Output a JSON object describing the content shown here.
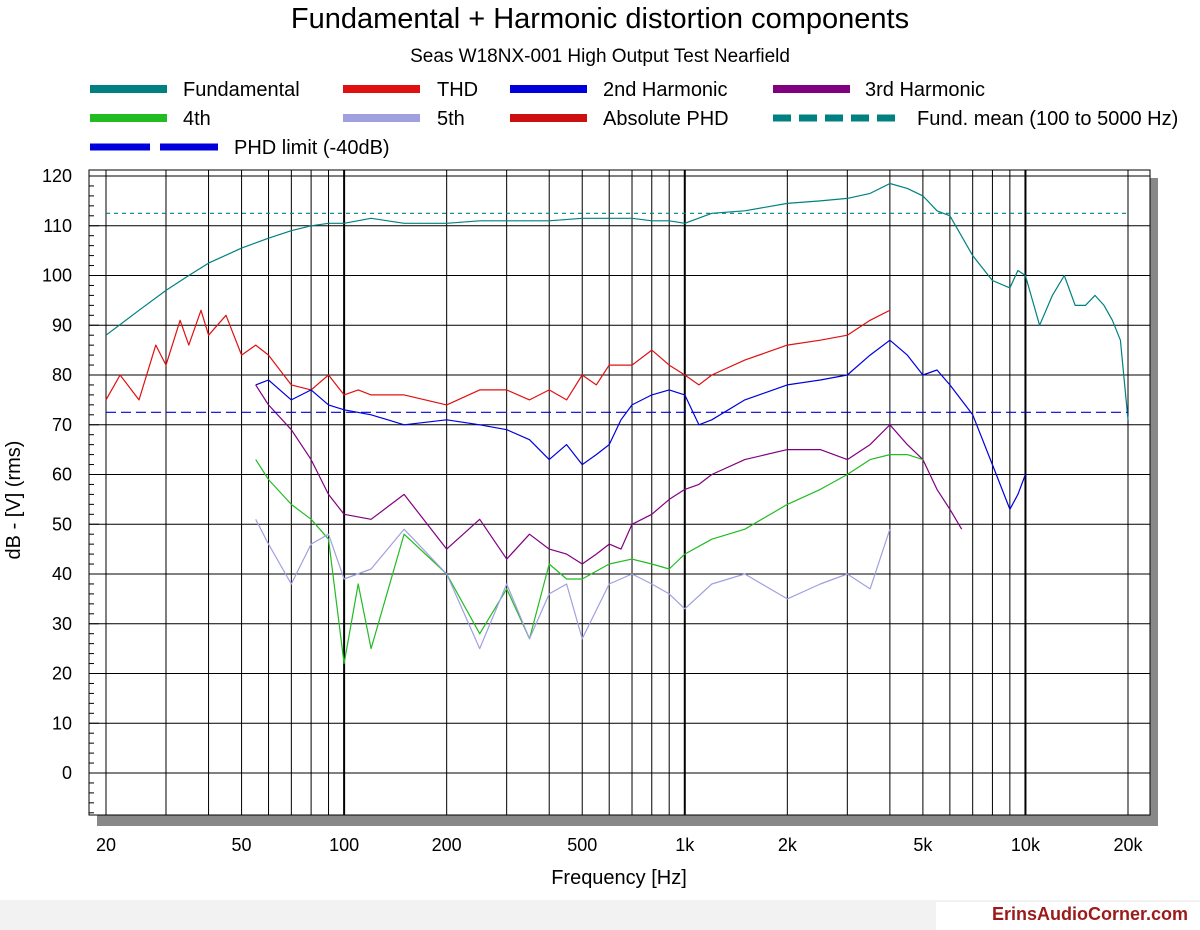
{
  "credit": "ErinsAudioCorner.com",
  "chart_data": {
    "type": "line",
    "title": "Fundamental + Harmonic distortion components",
    "subtitle": "Seas W18NX-001 High Output Test Nearfield",
    "xlabel": "Frequency [Hz]",
    "ylabel": "dB - [V]  (rms)",
    "xscale": "log",
    "xlim": [
      18,
      22000
    ],
    "ylim": [
      -8,
      122
    ],
    "grid": true,
    "legend": "top",
    "x_ticks": [
      {
        "v": 20,
        "label": "20"
      },
      {
        "v": 50,
        "label": "50"
      },
      {
        "v": 100,
        "label": "100"
      },
      {
        "v": 200,
        "label": "200"
      },
      {
        "v": 500,
        "label": "500"
      },
      {
        "v": 1000,
        "label": "1k"
      },
      {
        "v": 2000,
        "label": "2k"
      },
      {
        "v": 5000,
        "label": "5k"
      },
      {
        "v": 10000,
        "label": "10k"
      },
      {
        "v": 20000,
        "label": "20k"
      }
    ],
    "y_ticks": [
      0,
      10,
      20,
      30,
      40,
      50,
      60,
      70,
      80,
      90,
      100,
      110,
      120
    ],
    "series": [
      {
        "name": "Fundamental",
        "color": "#008080",
        "style": "solid",
        "x": [
          20,
          25,
          30,
          35,
          40,
          50,
          60,
          70,
          80,
          90,
          100,
          120,
          150,
          200,
          250,
          300,
          400,
          500,
          600,
          700,
          800,
          900,
          1000,
          1200,
          1500,
          2000,
          2500,
          3000,
          3500,
          4000,
          4500,
          5000,
          5500,
          6000,
          7000,
          8000,
          9000,
          9500,
          10000,
          11000,
          12000,
          13000,
          14000,
          15000,
          16000,
          17000,
          18000,
          19000,
          20000
        ],
        "y": [
          88,
          93,
          97,
          100,
          102.5,
          105.5,
          107.5,
          109,
          110,
          110.5,
          110.5,
          111.5,
          110.5,
          110.5,
          111,
          111,
          111,
          111.5,
          111.5,
          111.5,
          111,
          111,
          110.5,
          112.5,
          113,
          114.5,
          115,
          115.5,
          116.5,
          118.5,
          117.5,
          116,
          113,
          112,
          104,
          99,
          97.5,
          101,
          100,
          90,
          96,
          100,
          94,
          94,
          96,
          94,
          91,
          87,
          71
        ]
      },
      {
        "name": "THD",
        "color": "#e01010",
        "style": "solid",
        "x": [
          20,
          22,
          25,
          28,
          30,
          33,
          35,
          38,
          40,
          45,
          50,
          55,
          60,
          70,
          80,
          90,
          100,
          110,
          120,
          150,
          200,
          250,
          300,
          350,
          400,
          450,
          500,
          550,
          600,
          700,
          800,
          900,
          1000,
          1100,
          1200,
          1500,
          2000,
          2500,
          3000,
          3500,
          4000
        ],
        "y": [
          75,
          80,
          75,
          86,
          82,
          91,
          86,
          93,
          88,
          92,
          84,
          86,
          84,
          78,
          77,
          80,
          76,
          77,
          76,
          76,
          74,
          77,
          77,
          75,
          77,
          75,
          80,
          78,
          82,
          82,
          85,
          82,
          80,
          78,
          80,
          83,
          86,
          87,
          88,
          91,
          93
        ]
      },
      {
        "name": "2nd Harmonic",
        "color": "#0000dd",
        "style": "solid",
        "x": [
          55,
          60,
          70,
          80,
          90,
          100,
          120,
          150,
          200,
          250,
          300,
          350,
          400,
          450,
          500,
          550,
          600,
          650,
          700,
          800,
          900,
          1000,
          1100,
          1200,
          1500,
          2000,
          2500,
          3000,
          3500,
          4000,
          4500,
          5000,
          5500,
          6000,
          7000,
          8000,
          9000,
          9500,
          10000
        ],
        "y": [
          78,
          79,
          75,
          77,
          74,
          73,
          72,
          70,
          71,
          70,
          69,
          67,
          63,
          66,
          62,
          64,
          66,
          71,
          74,
          76,
          77,
          76,
          70,
          71,
          75,
          78,
          79,
          80,
          84,
          87,
          84,
          80,
          81,
          78,
          72,
          62,
          53,
          56,
          60
        ]
      },
      {
        "name": "3rd Harmonic",
        "color": "#800080",
        "style": "solid",
        "x": [
          55,
          60,
          70,
          80,
          90,
          100,
          120,
          150,
          200,
          250,
          300,
          350,
          400,
          450,
          500,
          550,
          600,
          650,
          700,
          800,
          900,
          1000,
          1100,
          1200,
          1500,
          2000,
          2500,
          3000,
          3500,
          4000,
          4500,
          5000,
          5500,
          6000,
          6500
        ],
        "y": [
          78,
          74,
          69,
          63,
          56,
          52,
          51,
          56,
          45,
          51,
          43,
          48,
          45,
          44,
          42,
          44,
          46,
          45,
          50,
          52,
          55,
          57,
          58,
          60,
          63,
          65,
          65,
          63,
          66,
          70,
          66,
          63,
          57,
          53,
          49
        ]
      },
      {
        "name": "4th",
        "color": "#22bb22",
        "style": "solid",
        "x": [
          55,
          60,
          70,
          80,
          90,
          100,
          110,
          120,
          150,
          200,
          250,
          300,
          350,
          400,
          450,
          500,
          600,
          700,
          800,
          900,
          1000,
          1200,
          1500,
          2000,
          2500,
          3000,
          3500,
          4000,
          4500,
          5000
        ],
        "y": [
          63,
          59,
          54,
          51,
          47,
          22,
          38,
          25,
          48,
          40,
          28,
          37,
          27,
          42,
          39,
          39,
          42,
          43,
          42,
          41,
          44,
          47,
          49,
          54,
          57,
          60,
          63,
          64,
          64,
          63
        ]
      },
      {
        "name": "5th",
        "color": "#a0a0e0",
        "style": "solid",
        "x": [
          55,
          60,
          70,
          80,
          90,
          100,
          120,
          150,
          200,
          250,
          300,
          350,
          400,
          450,
          500,
          600,
          700,
          800,
          900,
          1000,
          1200,
          1500,
          2000,
          2500,
          3000,
          3500,
          4000
        ],
        "y": [
          51,
          46,
          38,
          46,
          48,
          39,
          41,
          49,
          40,
          25,
          38,
          27,
          36,
          38,
          27,
          38,
          40,
          38,
          36,
          33,
          38,
          40,
          35,
          38,
          40,
          37,
          49
        ]
      },
      {
        "name": "Absolute PHD",
        "color": "#cc1010",
        "style": "solid",
        "x": [],
        "y": []
      },
      {
        "name": "Fund. mean (100 to 5000 Hz)",
        "color": "#008080",
        "style": "dashed",
        "x": [
          20,
          20000
        ],
        "y": [
          112.5,
          112.5
        ]
      },
      {
        "name": "PHD limit (-40dB)",
        "color": "#0000dd",
        "style": "dashed",
        "x": [
          20,
          20000
        ],
        "y": [
          72.5,
          72.5
        ]
      }
    ]
  }
}
